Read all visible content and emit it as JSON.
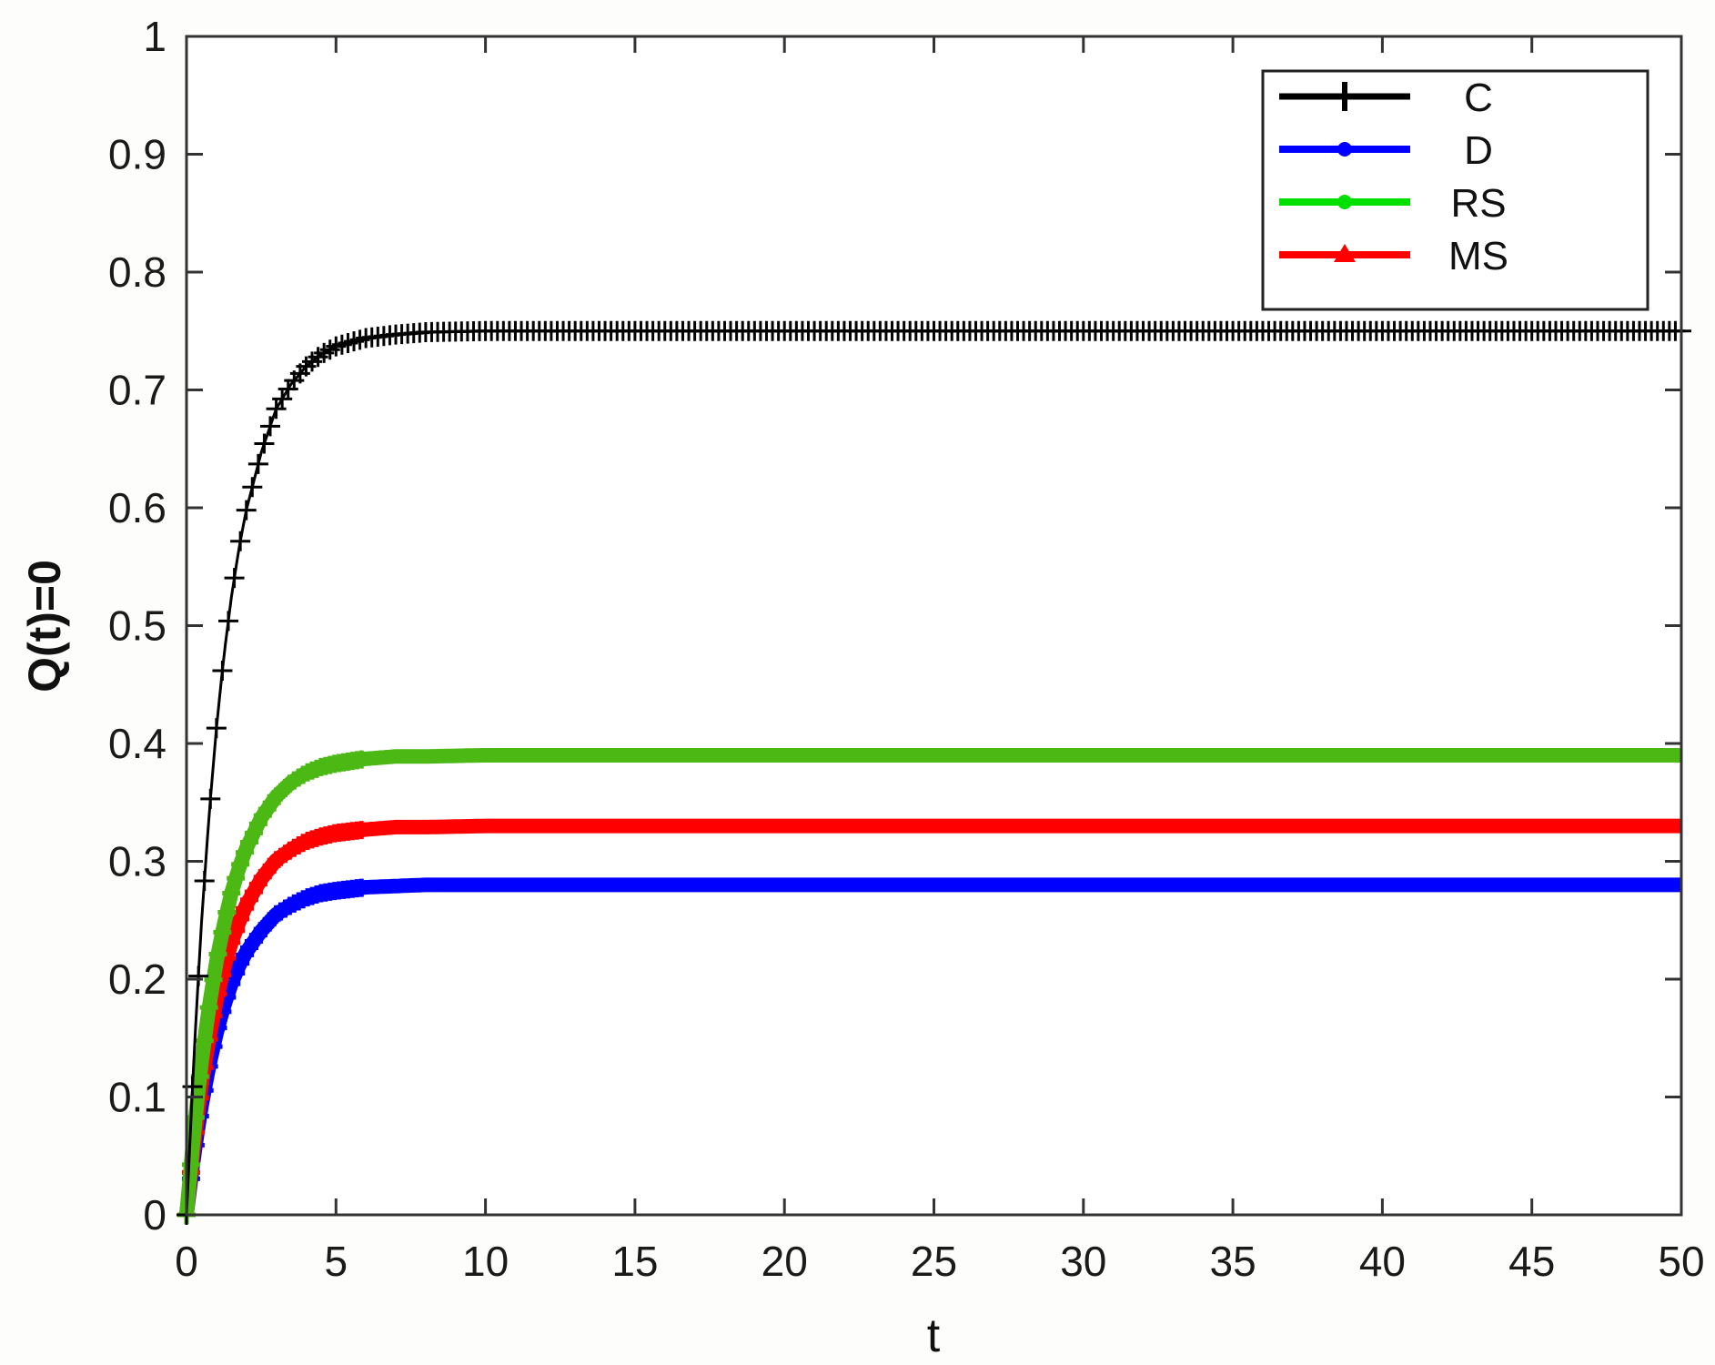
{
  "chart_data": {
    "type": "line",
    "title": "",
    "xlabel": "t",
    "ylabel": "Q(t)=0",
    "xlim": [
      0,
      50
    ],
    "ylim": [
      0,
      1
    ],
    "xticks": [
      0,
      5,
      10,
      15,
      20,
      25,
      30,
      35,
      40,
      45,
      50
    ],
    "xtick_labels": [
      "0",
      "5",
      "10",
      "15",
      "20",
      "25",
      "30",
      "35",
      "40",
      "45",
      "50"
    ],
    "yticks": [
      0,
      0.1,
      0.2,
      0.3,
      0.4,
      0.5,
      0.6,
      0.7,
      0.8,
      0.9,
      1
    ],
    "ytick_labels": [
      "0",
      "0.1",
      "0.2",
      "0.3",
      "0.4",
      "0.5",
      "0.6",
      "0.7",
      "0.8",
      "0.9",
      "1"
    ],
    "grid": false,
    "legend_position": "upper right",
    "x": [
      0,
      0.25,
      0.5,
      0.75,
      1,
      1.25,
      1.5,
      1.75,
      2,
      2.5,
      3,
      3.5,
      4,
      4.5,
      5,
      6,
      7,
      8,
      10,
      15,
      20,
      25,
      30,
      35,
      40,
      45,
      50
    ],
    "series": [
      {
        "name": "C",
        "color": "#000000",
        "marker": "+",
        "legend_color": "#000000",
        "steady_state": 0.75,
        "values": [
          0,
          0.136,
          0.247,
          0.338,
          0.413,
          0.474,
          0.524,
          0.565,
          0.598,
          0.647,
          0.684,
          0.705,
          0.72,
          0.73,
          0.737,
          0.744,
          0.747,
          0.749,
          0.75,
          0.75,
          0.75,
          0.75,
          0.75,
          0.75,
          0.75,
          0.75,
          0.75
        ]
      },
      {
        "name": "D",
        "color": "#0000ff",
        "marker": "*",
        "legend_color": "#0000ff",
        "steady_state": 0.28,
        "values": [
          0,
          0.051,
          0.092,
          0.126,
          0.154,
          0.177,
          0.196,
          0.211,
          0.223,
          0.241,
          0.255,
          0.263,
          0.269,
          0.273,
          0.275,
          0.278,
          0.279,
          0.28,
          0.28,
          0.28,
          0.28,
          0.28,
          0.28,
          0.28,
          0.28,
          0.28,
          0.28
        ]
      },
      {
        "name": "RS",
        "color": "#4cb814",
        "marker": "+",
        "legend_color": "#00e000",
        "steady_state": 0.39,
        "values": [
          0,
          0.071,
          0.129,
          0.176,
          0.215,
          0.246,
          0.273,
          0.294,
          0.311,
          0.337,
          0.355,
          0.367,
          0.375,
          0.38,
          0.383,
          0.387,
          0.389,
          0.389,
          0.39,
          0.39,
          0.39,
          0.39,
          0.39,
          0.39,
          0.39,
          0.39,
          0.39
        ]
      },
      {
        "name": "MS",
        "color": "#ff0000",
        "marker": "+",
        "legend_color": "#ff0000",
        "steady_state": 0.33,
        "values": [
          0,
          0.06,
          0.109,
          0.149,
          0.182,
          0.209,
          0.231,
          0.248,
          0.263,
          0.285,
          0.301,
          0.31,
          0.317,
          0.321,
          0.324,
          0.327,
          0.329,
          0.329,
          0.33,
          0.33,
          0.33,
          0.33,
          0.33,
          0.33,
          0.33,
          0.33,
          0.33
        ]
      }
    ]
  },
  "legend": {
    "items": [
      {
        "label": "C",
        "color": "#000000"
      },
      {
        "label": "D",
        "color": "#0000ff"
      },
      {
        "label": "RS",
        "color": "#00e000"
      },
      {
        "label": "MS",
        "color": "#ff0000"
      }
    ]
  }
}
